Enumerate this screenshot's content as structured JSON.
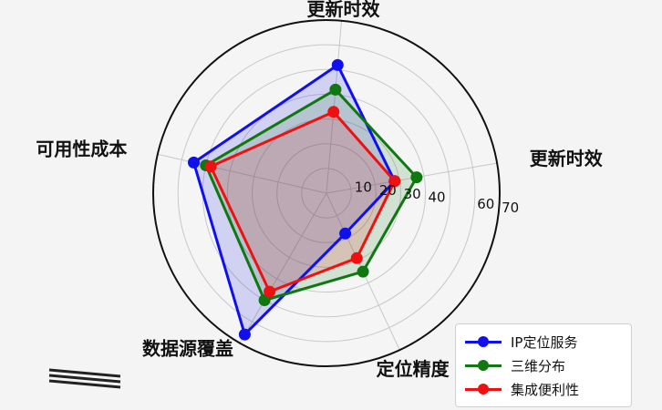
{
  "chart_data": {
    "type": "radar",
    "categories": [
      "定位精度",
      "更新时效",
      "更新时效",
      "可用性成本",
      "数据源覆盖"
    ],
    "radial_ticks": [
      "10",
      "20",
      "30",
      "40",
      "60",
      "70"
    ],
    "rlim": [
      0,
      70
    ],
    "series": [
      {
        "name": "IP定位服务",
        "color": "#1010ee",
        "values": [
          18,
          28,
          52,
          55,
          66
        ]
      },
      {
        "name": "三维分布",
        "color": "#117711",
        "values": [
          35,
          37,
          42,
          50,
          50
        ]
      },
      {
        "name": "集成便利性",
        "color": "#ee1111",
        "values": [
          29,
          28,
          33,
          48,
          46
        ]
      }
    ],
    "legend_position": "bottom-right",
    "grid": true
  },
  "decoration": {
    "text": "======"
  }
}
